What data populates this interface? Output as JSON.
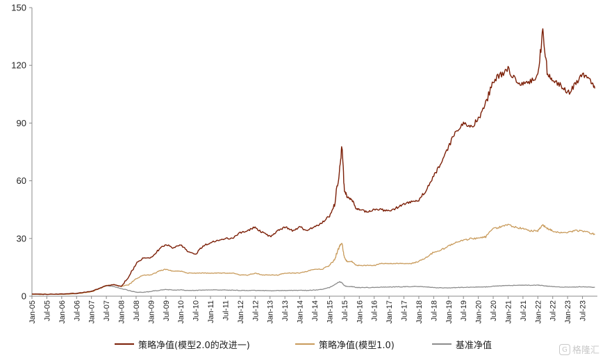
{
  "chart_data": {
    "type": "line",
    "title": "",
    "xlabel": "",
    "ylabel": "",
    "ylim": [
      0,
      150
    ],
    "yticks": [
      0,
      30,
      60,
      90,
      120,
      150
    ],
    "xticks": [
      "Jan-05",
      "Jul-05",
      "Jan-06",
      "Jul-06",
      "Jan-07",
      "Jul-07",
      "Jan-08",
      "Jul-08",
      "Jan-09",
      "Jul-09",
      "Jan-10",
      "Jul-10",
      "Jan-11",
      "Jul-11",
      "Jan-12",
      "Jul-12",
      "Jan-13",
      "Jul-13",
      "Jan-14",
      "Jul-14",
      "Jan-15",
      "Jul-15",
      "Jan-16",
      "Jul-16",
      "Jan-17",
      "Jul-17",
      "Jan-18",
      "Jul-18",
      "Jan-19",
      "Jul-19",
      "Jan-20",
      "Jul-20",
      "Jan-21",
      "Jul-21",
      "Jan-22",
      "Jul-22",
      "Jan-23",
      "Jul-23"
    ],
    "grid": false,
    "legend_position": "bottom",
    "x": [
      "2005-01",
      "2005-07",
      "2006-01",
      "2006-07",
      "2007-01",
      "2007-04",
      "2007-07",
      "2007-10",
      "2008-01",
      "2008-04",
      "2008-07",
      "2008-10",
      "2009-01",
      "2009-04",
      "2009-07",
      "2009-10",
      "2010-01",
      "2010-04",
      "2010-07",
      "2010-10",
      "2011-01",
      "2011-04",
      "2011-07",
      "2011-10",
      "2012-01",
      "2012-04",
      "2012-07",
      "2012-10",
      "2013-01",
      "2013-04",
      "2013-07",
      "2013-10",
      "2014-01",
      "2014-04",
      "2014-07",
      "2014-10",
      "2015-01",
      "2015-03",
      "2015-05",
      "2015-06",
      "2015-07",
      "2015-08",
      "2015-10",
      "2015-12",
      "2016-01",
      "2016-04",
      "2016-07",
      "2016-10",
      "2017-01",
      "2017-04",
      "2017-07",
      "2017-10",
      "2018-01",
      "2018-04",
      "2018-07",
      "2018-10",
      "2019-01",
      "2019-04",
      "2019-07",
      "2019-10",
      "2020-01",
      "2020-04",
      "2020-07",
      "2020-10",
      "2021-01",
      "2021-04",
      "2021-07",
      "2021-10",
      "2022-01",
      "2022-03",
      "2022-05",
      "2022-07",
      "2022-10",
      "2023-01",
      "2023-04",
      "2023-07",
      "2023-10",
      "2023-12"
    ],
    "series": [
      {
        "name": "策略净值(模型2.0的改进一)",
        "color": "#7B1E06",
        "values": [
          1,
          1,
          1.1,
          1.5,
          2.5,
          4,
          5.5,
          6,
          5,
          10,
          17,
          20,
          20,
          24,
          27,
          25,
          27,
          23,
          22,
          26,
          28,
          29,
          30,
          30,
          33,
          34,
          36,
          33,
          31,
          34,
          36,
          34,
          36,
          34,
          36,
          38,
          42,
          48,
          65,
          78,
          55,
          52,
          50,
          45,
          45,
          44,
          45,
          45,
          44,
          46,
          48,
          49,
          50,
          55,
          62,
          70,
          78,
          85,
          90,
          88,
          92,
          100,
          112,
          115,
          118,
          112,
          110,
          112,
          115,
          138,
          115,
          112,
          110,
          105,
          110,
          116,
          112,
          108
        ]
      },
      {
        "name": "策略净值(模型1.0)",
        "color": "#C89A5A",
        "values": [
          1,
          1,
          1,
          1.3,
          2.3,
          3.8,
          5.5,
          6,
          5,
          6,
          9,
          11,
          11,
          13,
          14,
          13,
          13,
          12,
          12,
          12,
          12,
          12,
          12,
          12,
          11,
          11,
          12,
          11,
          11,
          11,
          12,
          12,
          12,
          13,
          14,
          14,
          16,
          19,
          26,
          28,
          20,
          18,
          18,
          16,
          16,
          16,
          16,
          17,
          17,
          17,
          17,
          17,
          18,
          20,
          23,
          24,
          26,
          28,
          29,
          30,
          30,
          31,
          35,
          36,
          37,
          36,
          35,
          34,
          34,
          37,
          35,
          34,
          33,
          33,
          34,
          34,
          33,
          32
        ]
      },
      {
        "name": "基准净值",
        "color": "#8C8C8C",
        "values": [
          1,
          1,
          1,
          1.3,
          2.5,
          4,
          5.5,
          5,
          4,
          3,
          2,
          2,
          2.5,
          3,
          3.5,
          3.2,
          3.3,
          3,
          3,
          3.2,
          3.3,
          3.2,
          3.2,
          3.1,
          3,
          3,
          3,
          2.9,
          2.9,
          2.9,
          3,
          3,
          3,
          3,
          3.2,
          3.5,
          4.5,
          6,
          7.5,
          7,
          5.5,
          5,
          5,
          4.5,
          4.5,
          4.5,
          4.5,
          4.7,
          4.8,
          4.8,
          4.9,
          5,
          5,
          4.8,
          4.5,
          4.3,
          4.3,
          4.5,
          4.6,
          4.6,
          4.7,
          4.8,
          5.2,
          5.4,
          5.6,
          5.6,
          5.7,
          5.7,
          5.8,
          5.5,
          5.2,
          5,
          4.8,
          4.7,
          4.8,
          4.9,
          4.8,
          4.6
        ]
      }
    ]
  },
  "watermark": {
    "text": "格隆汇",
    "icon": "G"
  }
}
